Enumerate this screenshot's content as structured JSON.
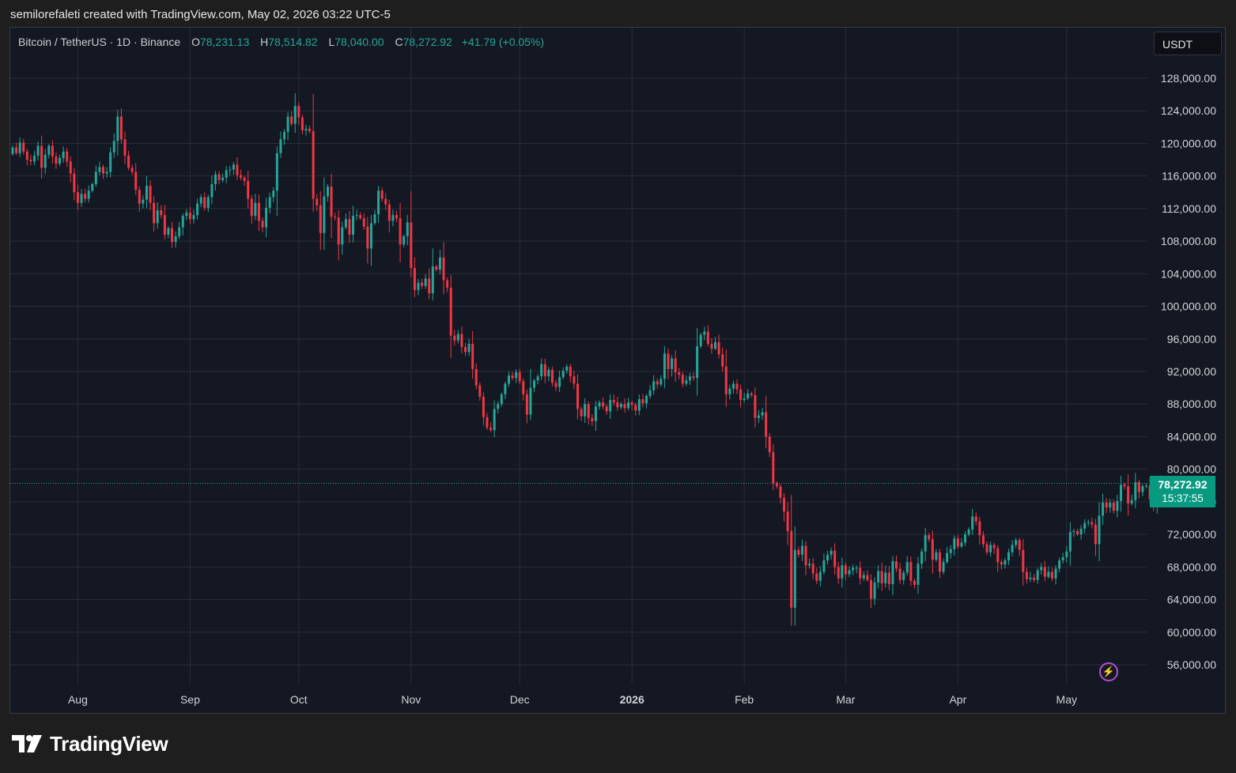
{
  "header": {
    "attribution": "semilorefaleti created with TradingView.com, May 02, 2026 03:22 UTC-5"
  },
  "legend": {
    "symbol": "Bitcoin / TetherUS · 1D · Binance",
    "o_key": "O",
    "o_val": "78,231.13",
    "h_key": "H",
    "h_val": "78,514.82",
    "l_key": "L",
    "l_val": "78,040.00",
    "c_key": "C",
    "c_val": "78,272.92",
    "change": "+41.79 (+0.05%)"
  },
  "currency_button": "USDT",
  "price_label": {
    "price": "78,272.92",
    "countdown": "15:37:55"
  },
  "brand": {
    "name": "TradingView",
    "icon": "tradingview-logo-icon"
  },
  "colors": {
    "up": "#26a69a",
    "down": "#f23645",
    "background": "#141822",
    "grid": "#2a2e39"
  },
  "chart_data": {
    "type": "candlestick",
    "symbol": "Bitcoin / TetherUS",
    "interval": "1D",
    "exchange": "Binance",
    "ylim": [
      53000,
      132000
    ],
    "y_ticks": [
      "56,000.00",
      "60,000.00",
      "64,000.00",
      "68,000.00",
      "72,000.00",
      "76,000.00",
      "80,000.00",
      "84,000.00",
      "88,000.00",
      "92,000.00",
      "96,000.00",
      "100,000.00",
      "104,000.00",
      "108,000.00",
      "112,000.00",
      "116,000.00",
      "120,000.00",
      "124,000.00",
      "128,000.00"
    ],
    "x_ticks": [
      {
        "label": "Aug",
        "idx": 18
      },
      {
        "label": "Sep",
        "idx": 49
      },
      {
        "label": "Oct",
        "idx": 79
      },
      {
        "label": "Nov",
        "idx": 110
      },
      {
        "label": "Dec",
        "idx": 140
      },
      {
        "label": "2026",
        "idx": 171,
        "bold": true
      },
      {
        "label": "Feb",
        "idx": 202
      },
      {
        "label": "Mar",
        "idx": 230
      },
      {
        "label": "Apr",
        "idx": 261
      },
      {
        "label": "May",
        "idx": 291
      }
    ],
    "last_price": 78272.92,
    "closes": [
      119500,
      118800,
      120100,
      119000,
      118000,
      117800,
      118500,
      119700,
      117000,
      118600,
      119700,
      118400,
      117500,
      118200,
      119000,
      117800,
      116300,
      114000,
      112700,
      113800,
      113200,
      114200,
      115000,
      116500,
      117100,
      116300,
      116500,
      118900,
      120300,
      123300,
      120500,
      118500,
      117000,
      116500,
      114300,
      112600,
      113100,
      114800,
      112700,
      110200,
      111800,
      111200,
      108800,
      109600,
      107900,
      108600,
      109700,
      111100,
      111500,
      110700,
      111200,
      112600,
      113400,
      112100,
      113400,
      115000,
      116200,
      115500,
      115800,
      116700,
      116800,
      117400,
      116100,
      115800,
      115400,
      113200,
      111100,
      112700,
      110500,
      109700,
      112100,
      113400,
      114200,
      118800,
      120500,
      121400,
      123300,
      122400,
      124600,
      123200,
      121600,
      121800,
      121500,
      113200,
      112400,
      109000,
      113500,
      114700,
      111000,
      110900,
      107600,
      109700,
      110700,
      108800,
      111100,
      111200,
      110800,
      109800,
      107100,
      110200,
      111300,
      114200,
      113200,
      112500,
      110500,
      111200,
      110800,
      107600,
      108600,
      110300,
      104700,
      102000,
      102900,
      102500,
      103400,
      101600,
      104900,
      104500,
      106000,
      103200,
      102300,
      96400,
      95800,
      96600,
      95000,
      94400,
      95400,
      92300,
      90300,
      88900,
      86400,
      85100,
      84800,
      87400,
      88000,
      89200,
      90500,
      91500,
      91200,
      91900,
      90800,
      89200,
      86700,
      90000,
      90900,
      91400,
      92900,
      91400,
      92200,
      90600,
      90100,
      91300,
      92100,
      92600,
      91400,
      90500,
      87400,
      86500,
      88000,
      86300,
      85900,
      87700,
      88200,
      87700,
      87100,
      88500,
      88200,
      87600,
      88000,
      87500,
      88200,
      87900,
      87200,
      88600,
      88100,
      89000,
      89700,
      90800,
      90400,
      91100,
      94200,
      92300,
      93600,
      91900,
      91600,
      90500,
      90900,
      91400,
      91200,
      95100,
      96500,
      96900,
      95400,
      94800,
      95600,
      94100,
      92600,
      89200,
      89900,
      90500,
      89800,
      88500,
      88700,
      89300,
      89100,
      86300,
      86600,
      87000,
      84000,
      82100,
      78300,
      77900,
      76500,
      74800,
      72400,
      63000,
      70100,
      69500,
      70600,
      68200,
      68400,
      67200,
      66300,
      67400,
      68800,
      69500,
      70000,
      68000,
      66600,
      68200,
      67100,
      67600,
      67900,
      67900,
      66600,
      67000,
      66400,
      64100,
      66100,
      67500,
      66000,
      67300,
      65900,
      68700,
      67800,
      66400,
      67300,
      68600,
      66300,
      65800,
      68400,
      69900,
      71900,
      71400,
      68900,
      69800,
      67400,
      68600,
      69700,
      70200,
      71500,
      70500,
      71000,
      72000,
      72600,
      74200,
      73600,
      71900,
      70800,
      69800,
      70700,
      70300,
      68600,
      68300,
      68800,
      69800,
      70700,
      71300,
      70100,
      67400,
      66500,
      66700,
      66400,
      67600,
      68000,
      66800,
      67400,
      66600,
      67800,
      68800,
      69200,
      69900,
      72300,
      72400,
      72000,
      72700,
      73400,
      73500,
      73200,
      70800,
      74300,
      75900,
      75300,
      75900,
      74900,
      76100,
      78100,
      77900,
      75800,
      76200,
      78400,
      77200,
      77900,
      78000,
      76300,
      75500,
      77000,
      78272.92
    ]
  }
}
